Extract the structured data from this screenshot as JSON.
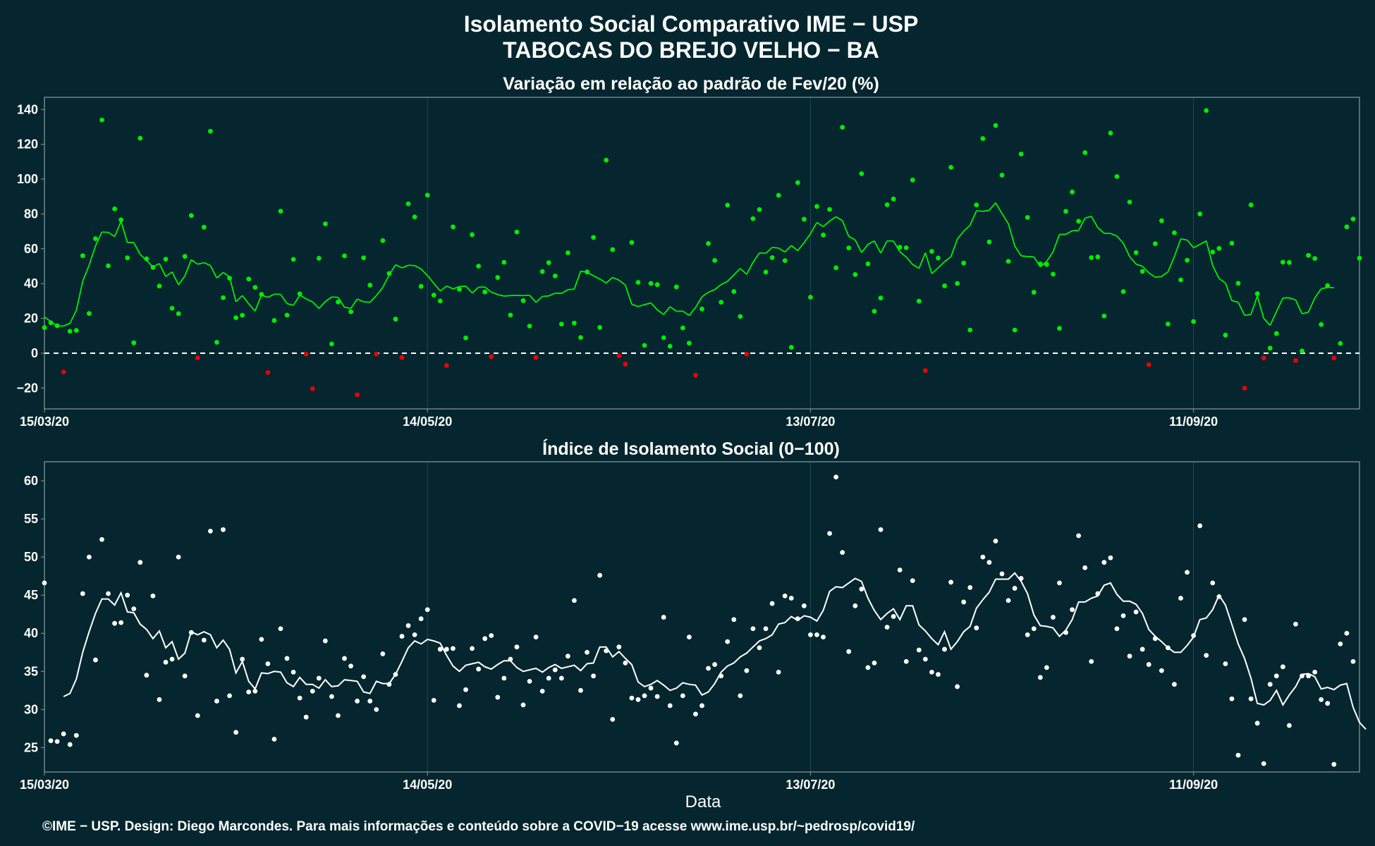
{
  "colors": {
    "background": "#05262f",
    "panel_border": "#8a9a9e",
    "grid": "#1d4a55",
    "green": "#00ee00",
    "red": "#ee0000",
    "white": "#ffffff"
  },
  "title_line1": "Isolamento Social Comparativo IME − USP",
  "title_line2": "TABOCAS DO BREJO VELHO − BA",
  "footer": "©IME − USP. Design: Diego Marcondes. Para mais informações e conteúdo sobre a COVID−19 acesse www.ime.usp.br/~pedrosp/covid19/",
  "chart_data": [
    {
      "type": "scatter",
      "title": "Variação em relação ao padrão de Fev/20 (%)",
      "xlabel": "",
      "ylabel": "",
      "x_start": "15/03/20",
      "x_range_days": [
        0,
        206
      ],
      "x_ticks": [
        {
          "day": 0,
          "label": "15/03/20"
        },
        {
          "day": 60,
          "label": "14/05/20"
        },
        {
          "day": 120,
          "label": "13/07/20"
        },
        {
          "day": 180,
          "label": "11/09/20"
        }
      ],
      "ylim": [
        -32,
        147
      ],
      "y_ticks": [
        140,
        120,
        100,
        80,
        60,
        40,
        20,
        0,
        -20
      ],
      "reference_line": 0,
      "grid": true,
      "points": [
        14.7,
        17.5,
        15.8,
        -10.8,
        12.6,
        13.1,
        56,
        22.8,
        65.8,
        134,
        50.2,
        82.9,
        76.6,
        54.8,
        6,
        123.5,
        54.2,
        49.3,
        38.6,
        54,
        25.8,
        22.7,
        55.6,
        79.1,
        -2.7,
        72.4,
        127.5,
        6.3,
        31.9,
        43.1,
        20.4,
        21.8,
        42.6,
        37.8,
        33.8,
        -11.1,
        18.8,
        81.6,
        21.9,
        53.9,
        34.1,
        -0.5,
        -20.4,
        54.5,
        74.3,
        5.3,
        29.4,
        55.9,
        23.8,
        -23.9,
        54.8,
        39.1,
        -0.5,
        64.7,
        45.8,
        19.6,
        -2.5,
        85.8,
        78.3,
        38.4,
        90.8,
        33.4,
        30,
        -7.1,
        72.6,
        36.7,
        8.8,
        68.1,
        50,
        35.2,
        -2,
        43.5,
        52.2,
        21.9,
        69.6,
        30.2,
        15.6,
        -2.5,
        46.9,
        52,
        44.4,
        16.7,
        57.7,
        17.3,
        9,
        46.7,
        66.5,
        14.8,
        110.9,
        59.5,
        -1.5,
        -6.3,
        63.6,
        40.7,
        4.5,
        40.1,
        39.4,
        8.9,
        4,
        38.1,
        14.5,
        5.8,
        -12.6,
        25.4,
        63,
        53.3,
        29.3,
        85.1,
        35.4,
        21.1,
        -0.5,
        77.3,
        82.5,
        46.6,
        54.9,
        90.7,
        53.2,
        3.4,
        98,
        77,
        32.2,
        84.3,
        67.9,
        82.6,
        49.1,
        129.8,
        60.5,
        45.2,
        103.1,
        51.3,
        24.1,
        31.7,
        85.3,
        88.6,
        60.9,
        60.6,
        99.5,
        29.9,
        -10,
        58.5,
        54.7,
        38.7,
        106.8,
        40.1,
        51.8,
        13.3,
        85.2,
        123.3,
        63.9,
        130.8,
        102.3,
        52.8,
        13.3,
        114.4,
        78,
        35,
        51.3,
        51,
        45.4,
        14.3,
        81.5,
        92.6,
        75.8,
        115.2,
        54.9,
        55.3,
        21.4,
        126.5,
        101.5,
        35.4,
        86.8,
        57.8,
        47,
        -6.6,
        62.9,
        76.1,
        16.8,
        69.2,
        42.1,
        53.4,
        18.2,
        80,
        139.4,
        58.1,
        60.2,
        10.4,
        63.2,
        40.2,
        -20.1,
        85.2,
        34.2,
        -2.8,
        2.9,
        11.3,
        52.3,
        52.1,
        -4.2,
        1.3,
        56.2,
        54.4,
        16.5,
        38.8,
        -2.8,
        5.6,
        72.6,
        77.1,
        54.6
      ],
      "moving_average": [
        20.8,
        18.2,
        15.6,
        15.6,
        17.2,
        24.6,
        41.3,
        50.6,
        61.6,
        69.6,
        69.4,
        67,
        75.7,
        63.6,
        63.6,
        56.7,
        53.3,
        49.5,
        51.5,
        44,
        46.7,
        39.3,
        44.3,
        53.7,
        51.1,
        52,
        50.4,
        43.2,
        46.4,
        43.8,
        29.6,
        33.1,
        28.4,
        24.2,
        33.4,
        32.1,
        33.9,
        33.8,
        28.5,
        27.5,
        33.3,
        31.2,
        29.5,
        25.7,
        29.6,
        32.3,
        32.1,
        26.4,
        25.7,
        31.1,
        29.5,
        29.2,
        33.1,
        37.8,
        44.9,
        50.8,
        49,
        50.5,
        50.3,
        48.4,
        44.6,
        40.1,
        35.7,
        38.6,
        36.9,
        38.3,
        38.5,
        34.6,
        37.9,
        38,
        35.1,
        33.7,
        32.8,
        33.1,
        33.2,
        33.1,
        33.3,
        29.2,
        32.6,
        32.9,
        34.5,
        34.4,
        36.5,
        36.8,
        47.1,
        46.5,
        44.5,
        42.6,
        40.3,
        43.5,
        42,
        39.1,
        28.1,
        26.8,
        27.9,
        28.9,
        24.9,
        22.2,
        26.7,
        24.1,
        24.2,
        21.7,
        26.3,
        32.4,
        35,
        36.5,
        39.4,
        41.3,
        45,
        48.7,
        45.3,
        52.2,
        57.6,
        57.4,
        60.8,
        60.4,
        58.1,
        61.9,
        58.9,
        63.5,
        68.6,
        75.1,
        72.7,
        75.9,
        78.4,
        76.1,
        67.1,
        65.1,
        57.8,
        62.5,
        64.5,
        57.5,
        64.5,
        64.4,
        58.3,
        55.2,
        51,
        48.7,
        57.7,
        45.7,
        49,
        52.6,
        55.4,
        65.5,
        70.1,
        73.5,
        81.8,
        81.5,
        82.1,
        86.4,
        80.2,
        74.4,
        61.6,
        55.9,
        55.5,
        55.3,
        49.6,
        52.7,
        58.2,
        68.2,
        68.3,
        70.3,
        70.5,
        77.6,
        78.6,
        72.2,
        68.9,
        68.8,
        67.3,
        63.2,
        55.5,
        51.2,
        49.9,
        46.2,
        43.6,
        44.1,
        46.7,
        55.5,
        65.7,
        65,
        60.6,
        62.5,
        64.5,
        50.4,
        42.9,
        40.3,
        30.2,
        29.3,
        21.7,
        22.3,
        32.9,
        20,
        16,
        23.9,
        31.7,
        31.8,
        30.6,
        22.6,
        23.6,
        31.8,
        37,
        37.8,
        37.6
      ]
    },
    {
      "type": "scatter",
      "title": "Índice de Isolamento Social (0−100)",
      "xlabel": "Data",
      "ylabel": "",
      "x_start": "15/03/20",
      "x_range_days": [
        0,
        206
      ],
      "x_ticks": [
        {
          "day": 0,
          "label": "15/03/20"
        },
        {
          "day": 60,
          "label": "14/05/20"
        },
        {
          "day": 120,
          "label": "13/07/20"
        },
        {
          "day": 180,
          "label": "11/09/20"
        }
      ],
      "ylim": [
        21.8,
        62.5
      ],
      "y_ticks": [
        60,
        55,
        50,
        45,
        40,
        35,
        30,
        25
      ],
      "grid": true,
      "points": [
        46.6,
        25.9,
        25.8,
        26.8,
        25.4,
        26.6,
        45.2,
        50,
        36.5,
        52.3,
        45.2,
        41.3,
        41.4,
        45,
        43.2,
        49.3,
        34.5,
        44.9,
        31.3,
        36.2,
        36.6,
        50,
        34.4,
        40.1,
        29.2,
        39.1,
        53.4,
        31.1,
        53.6,
        31.8,
        27,
        36.6,
        32.3,
        32.4,
        39.2,
        36,
        26.1,
        40.6,
        36.7,
        34.9,
        31.5,
        29,
        32.4,
        34.1,
        39,
        31.7,
        29.2,
        36.7,
        35.7,
        31.1,
        34.3,
        31.1,
        30,
        37.3,
        33.3,
        34.6,
        39.6,
        41,
        39.8,
        41.9,
        43.1,
        31.2,
        37.9,
        37.9,
        38,
        30.5,
        32.6,
        38,
        35.3,
        39.3,
        39.7,
        31.6,
        34.1,
        36.6,
        38.2,
        30.6,
        33.7,
        39.5,
        32.4,
        34.1,
        35.2,
        34.1,
        37,
        44.3,
        32.5,
        37.5,
        34.4,
        47.6,
        37.7,
        28.7,
        38.2,
        36.1,
        31.5,
        31.3,
        31.8,
        32.8,
        31.7,
        42.1,
        30.5,
        25.6,
        31.8,
        39.5,
        29.4,
        30.5,
        35.4,
        35.9,
        34.4,
        38.9,
        41.8,
        31.8,
        35.1,
        40.6,
        38.1,
        40.6,
        43.9,
        34.9,
        44.9,
        44.6,
        41.9,
        43.6,
        39.8,
        39.8,
        39.5,
        53.1,
        60.5,
        50.6,
        37.6,
        43.6,
        45.8,
        35.5,
        36.1,
        53.6,
        40.8,
        42.2,
        48.3,
        36.3,
        46.9,
        37.8,
        36.6,
        34.9,
        34.6,
        37.9,
        46.7,
        33,
        44.1,
        46,
        40.7,
        50,
        49.3,
        52.1,
        47.8,
        44.3,
        45.9,
        47.2,
        39.8,
        40.6,
        34.2,
        35.5,
        42.1,
        46.6,
        40.1,
        43.1,
        52.8,
        48.6,
        36.3,
        45.2,
        49.3,
        49.9,
        40.6,
        42.3,
        37,
        42.8,
        37.9,
        35.9,
        39.3,
        35.1,
        38.1,
        33.3,
        44.6,
        48,
        39.7,
        54.1,
        37.1,
        46.6,
        44.8,
        36,
        31.4,
        24,
        41.8,
        31.4,
        28.2,
        22.9,
        33.3,
        34.4,
        35.6,
        27.9,
        41.2,
        34.4,
        34.4,
        34.9,
        31.3,
        30.8,
        22.8,
        38.6,
        40,
        36.3
      ],
      "moving_average_start_day": 3,
      "moving_average": [
        31.7,
        32.1,
        34,
        37.5,
        40.2,
        42.6,
        44.5,
        44.5,
        43.7,
        45.3,
        42.8,
        42.7,
        41.2,
        40.5,
        39.3,
        40.3,
        38.1,
        38.9,
        36.6,
        37.4,
        40.2,
        39.8,
        40.2,
        39.8,
        38.1,
        39.1,
        37.9,
        34.8,
        36.3,
        33.7,
        32.7,
        34.8,
        34.7,
        35,
        34.9,
        33.5,
        33,
        34.2,
        33.3,
        33.3,
        32.8,
        33.9,
        33,
        33.1,
        33.9,
        33.8,
        33.7,
        32.3,
        32.1,
        33.7,
        33.4,
        33.4,
        34.6,
        36.3,
        38.1,
        39,
        38.6,
        39.2,
        39,
        38.7,
        37.1,
        35.7,
        35,
        35.8,
        36,
        36.2,
        35.6,
        35.3,
        35.9,
        36.4,
        36.4,
        35.5,
        35,
        35.2,
        35.4,
        34.9,
        35.5,
        35.9,
        35.4,
        35.6,
        35.8,
        35.1,
        36,
        36.1,
        38.2,
        38.2,
        36.9,
        37.6,
        36.7,
        35.9,
        33.6,
        33,
        33.3,
        33.8,
        33.2,
        32.5,
        32.8,
        33.5,
        33.3,
        33.2,
        31.9,
        32.3,
        33.4,
        34.9,
        35.7,
        36.1,
        36.9,
        37.4,
        38.2,
        39,
        39.3,
        39.8,
        41.2,
        41.4,
        42.2,
        41.7,
        42.3,
        42.1,
        41.6,
        43,
        45.5,
        46.1,
        46,
        46.6,
        47.2,
        46.8,
        44.6,
        43,
        41.8,
        42.6,
        43.2,
        41.8,
        43.6,
        43.6,
        41.1,
        40.3,
        39.3,
        38.5,
        40.2,
        37.9,
        38.9,
        40.2,
        40.9,
        43.3,
        44.4,
        45.4,
        47.1,
        47.1,
        47.1,
        47.9,
        46.8,
        45.2,
        42.4,
        41,
        40.9,
        40.7,
        39.6,
        40.4,
        41.8,
        44.1,
        44.1,
        44.6,
        44.9,
        46.3,
        46.6,
        45.1,
        44.2,
        44.2,
        43.8,
        42.6,
        40.5,
        39.6,
        38.9,
        38.1,
        37.5,
        37.5,
        38.4,
        39.5,
        41.8,
        42,
        43.1,
        45,
        43.7,
        41.2,
        38.6,
        36.7,
        34.1,
        30.8,
        30.6,
        31.2,
        32.5,
        30.6,
        31.9,
        33,
        34.6,
        34.7,
        34.3,
        32.7,
        32.9,
        32.6,
        33.2,
        33.4,
        30.3,
        28.3,
        27.4
      ]
    }
  ]
}
